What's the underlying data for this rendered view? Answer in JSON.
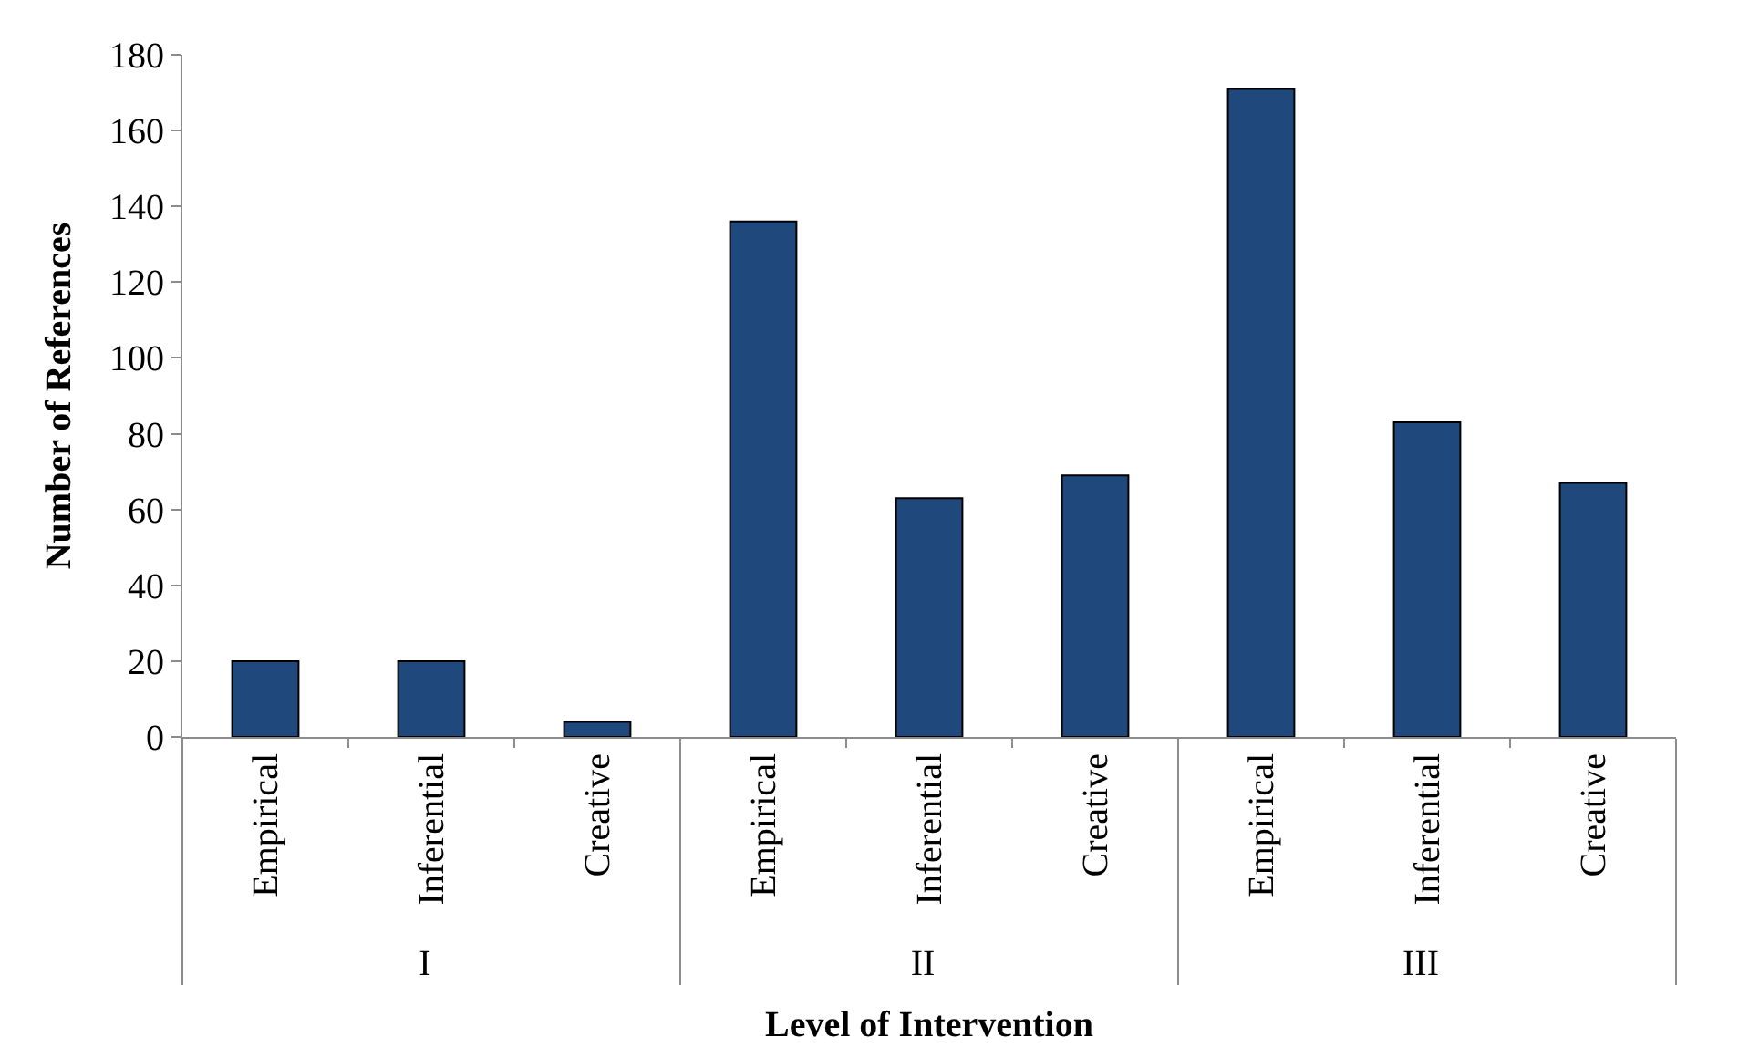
{
  "chart_data": {
    "type": "bar",
    "xlabel": "Level of Intervention",
    "ylabel": "Number of References",
    "categories": [
      "Empirical",
      "Inferential",
      "Creative",
      "Empirical",
      "Inferential",
      "Creative",
      "Empirical",
      "Inferential",
      "Creative"
    ],
    "annotations": [
      "I",
      "II",
      "III"
    ],
    "values": [
      20,
      20,
      4,
      136,
      63,
      69,
      171,
      83,
      67
    ],
    "color": "#1f497d",
    "ylim": [
      0,
      180
    ],
    "yticks": [
      0,
      20,
      40,
      60,
      80,
      100,
      120,
      140,
      160,
      180
    ]
  }
}
